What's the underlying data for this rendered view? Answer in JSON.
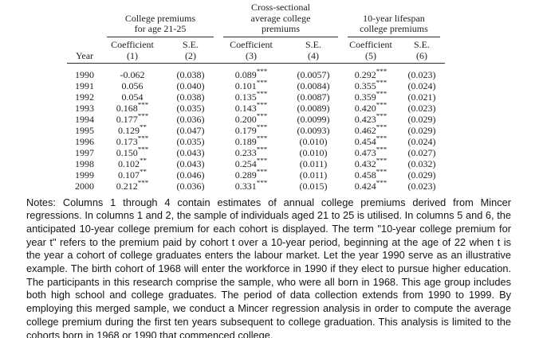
{
  "page": {
    "background": "#ffffff",
    "text_color": "#1e1e1e",
    "rule_color": "#2c2c2c"
  },
  "table": {
    "groups": [
      {
        "name": "college-premiums-age-21-25",
        "lines": [
          "College premiums",
          "for age 21-25"
        ]
      },
      {
        "name": "cross-sectional-average-college-premiums",
        "lines": [
          "Cross-sectional",
          "average college",
          "premiums"
        ]
      },
      {
        "name": "ten-year-lifespan-college-premiums",
        "lines": [
          "10-year lifespan",
          "college premiums"
        ]
      }
    ],
    "year_header": "Year",
    "subheaders": [
      "Coefficient",
      "S.E.",
      "Coefficient",
      "S.E.",
      "Coefficient",
      "S.E."
    ],
    "column_numbers": [
      "(1)",
      "(2)",
      "(3)",
      "(4)",
      "(5)",
      "(6)"
    ],
    "rows": [
      [
        "1990",
        "-0.062",
        "(0.038)",
        "0.089***",
        "(0.0057)",
        "0.292***",
        "(0.023)"
      ],
      [
        "1991",
        "0.056",
        "(0.040)",
        "0.101***",
        "(0.0084)",
        "0.355***",
        "(0.024)"
      ],
      [
        "1992",
        "0.054",
        "(0.038)",
        "0.135***",
        "(0.0087)",
        "0.359***",
        "(0.021)"
      ],
      [
        "1993",
        "0.168***",
        "(0.035)",
        "0.143***",
        "(0.0089)",
        "0.420***",
        "(0.023)"
      ],
      [
        "1994",
        "0.177***",
        "(0.036)",
        "0.200***",
        "(0.0099)",
        "0.423***",
        "(0.029)"
      ],
      [
        "1995",
        "0.129**",
        "(0.047)",
        "0.179***",
        "(0.0093)",
        "0.462***",
        "(0.029)"
      ],
      [
        "1996",
        "0.173***",
        "(0.035)",
        "0.189***",
        "(0.010)",
        "0.454***",
        "(0.024)"
      ],
      [
        "1997",
        "0.150***",
        "(0.043)",
        "0.233***",
        "(0.010)",
        "0.473***",
        "(0.027)"
      ],
      [
        "1998",
        "0.102**",
        "(0.043)",
        "0.254***",
        "(0.011)",
        "0.432***",
        "(0.032)"
      ],
      [
        "1999",
        "0.107**",
        "(0.046)",
        "0.289***",
        "(0.011)",
        "0.458***",
        "(0.029)"
      ],
      [
        "2000",
        "0.212***",
        "(0.036)",
        "0.331***",
        "(0.015)",
        "0.424***",
        "(0.023)"
      ]
    ]
  },
  "notes": {
    "text": "Notes: Columns 1 through 4 contain estimates of annual college premiums derived from Mincer regressions. In columns 1 and 2, the sample of individuals aged 21 to 25 is utilised. In columns 5 and 6, the anticipated 10-year college premium for each cohort is displayed. The term \"10-year college premium for year t\" refers to the premium paid by cohort t over a 10-year period, beginning at the age of 22 when t is the year a cohort of college graduates enters the labour market. Let the year 1990 serve as an illustrative example. The birth cohort of 1968 will enter the workforce in 1990 if they elect to pursue higher education. The participants in this research comprise the sample, who were all born in 1968. This age group includes both high school and college graduates. The period of data collection extends from 1990 to 1999. By employing this merged sample, we conduct a Mincer regression analysis in order to compute the average college premium during the first ten years subsequent to college graduation. This analysis is limited to the cohorts born in 1968 or 1990 that commenced college."
  }
}
